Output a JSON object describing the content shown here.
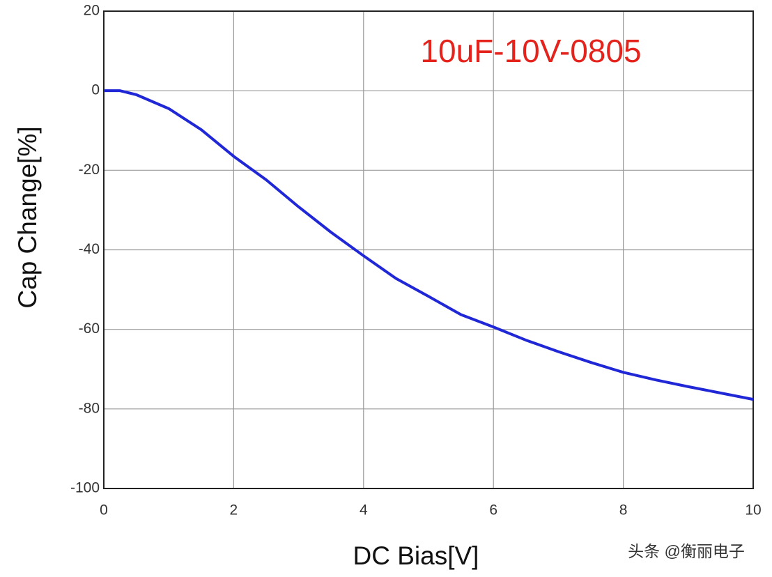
{
  "chart_data": {
    "type": "line",
    "x_label": "DC Bias[V]",
    "y_label": "Cap Change[%]",
    "annotation": "10uF-10V-0805",
    "annotation_color": "#e3231c",
    "watermark": "头条 @衡丽电子",
    "x": [
      0,
      0.25,
      0.5,
      1,
      1.5,
      2,
      2.5,
      3,
      3.5,
      4,
      4.5,
      5,
      5.5,
      6,
      6.5,
      7,
      7.5,
      8,
      8.5,
      9,
      9.5,
      10
    ],
    "values": [
      0,
      0,
      -1,
      -4.5,
      -9.8,
      -16.5,
      -22.4,
      -29.2,
      -35.6,
      -41.5,
      -47.2,
      -51.7,
      -56.3,
      -59.4,
      -62.7,
      -65.6,
      -68.3,
      -70.8,
      -72.7,
      -74.4,
      -76,
      -77.6
    ],
    "color": "#1f27d6",
    "xlim": [
      0,
      10
    ],
    "xticks": [
      0,
      2,
      4,
      6,
      8,
      10
    ],
    "ylim": [
      -100,
      20
    ],
    "yticks": [
      -100,
      -80,
      -60,
      -40,
      -20,
      0,
      20
    ],
    "grid": true
  }
}
